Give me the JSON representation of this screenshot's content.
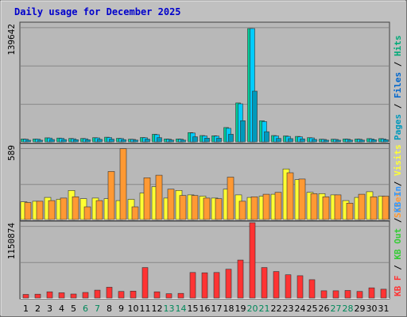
{
  "title": "Daily usage for December 2025",
  "colors": {
    "background": "#c0c0c0",
    "plot_bg": "#b8b8b8",
    "title": "#0000cc",
    "gridline": "#888888",
    "border_dark": "#404040",
    "border_light": "#f0f0f0",
    "hits": "#00cc99",
    "files": "#00ccff",
    "pages": "#0099bb",
    "visits": "#ffff33",
    "sites": "#ff9933",
    "kb_in": "#3399ff",
    "kb_out": "#33cc33",
    "kb_f": "#ff3333",
    "day_weekday": "#000000",
    "day_weekend": "#00885a"
  },
  "chart_data": [
    {
      "type": "bar",
      "panel": "hits-files-pages",
      "ytick_label": "139642",
      "ymax": 139642,
      "legend": [
        {
          "label": "Pages",
          "color": "#0099bb"
        },
        {
          "label": "Files",
          "color": "#0066cc"
        },
        {
          "label": "Hits",
          "color": "#00aa77"
        }
      ],
      "categories": [
        "1",
        "2",
        "3",
        "4",
        "5",
        "6",
        "7",
        "8",
        "9",
        "10",
        "11",
        "12",
        "13",
        "14",
        "15",
        "16",
        "17",
        "18",
        "19",
        "20",
        "21",
        "22",
        "23",
        "24",
        "25",
        "26",
        "27",
        "28",
        "29",
        "30",
        "31"
      ],
      "series": [
        {
          "name": "Hits",
          "values": [
            3500,
            3500,
            4800,
            4500,
            4000,
            4000,
            5000,
            5500,
            4200,
            3200,
            5200,
            9000,
            3500,
            3500,
            11000,
            7500,
            7200,
            17000,
            46000,
            134000,
            25000,
            7500,
            7000,
            6500,
            5000,
            3200,
            3200,
            3500,
            3400,
            3800,
            3800
          ]
        },
        {
          "name": "Files",
          "values": [
            3200,
            3300,
            4500,
            4200,
            3700,
            3700,
            4700,
            5200,
            3900,
            2900,
            4900,
            8500,
            3200,
            3200,
            10500,
            7000,
            6800,
            16000,
            45000,
            134000,
            24000,
            7000,
            6500,
            6000,
            4700,
            2900,
            2900,
            3200,
            3100,
            3500,
            3500
          ]
        },
        {
          "name": "Pages",
          "values": [
            2000,
            2000,
            2800,
            2700,
            2500,
            2400,
            3000,
            3200,
            2600,
            2100,
            3200,
            5000,
            2200,
            2100,
            6000,
            4400,
            4300,
            9000,
            25000,
            60000,
            12000,
            4000,
            3800,
            3600,
            2900,
            2000,
            2000,
            2200,
            2100,
            2400,
            2400
          ]
        }
      ]
    },
    {
      "type": "bar",
      "panel": "visits-sites",
      "ytick_label": "589",
      "ymax": 589,
      "legend": [
        {
          "label": "Sites",
          "color": "#ff9933"
        },
        {
          "label": "Visits",
          "color": "#ffff33"
        }
      ],
      "categories": [
        "1",
        "2",
        "3",
        "4",
        "5",
        "6",
        "7",
        "8",
        "9",
        "10",
        "11",
        "12",
        "13",
        "14",
        "15",
        "16",
        "17",
        "18",
        "19",
        "20",
        "21",
        "22",
        "23",
        "24",
        "25",
        "26",
        "27",
        "28",
        "29",
        "30",
        "31"
      ],
      "series": [
        {
          "name": "Visits",
          "values": [
            140,
            145,
            175,
            160,
            230,
            165,
            170,
            165,
            150,
            160,
            210,
            260,
            170,
            230,
            195,
            185,
            170,
            240,
            195,
            175,
            185,
            200,
            400,
            315,
            215,
            205,
            195,
            150,
            175,
            220,
            185
          ]
        },
        {
          "name": "Sites",
          "values": [
            135,
            145,
            150,
            170,
            180,
            100,
            150,
            380,
            560,
            100,
            330,
            350,
            240,
            190,
            190,
            170,
            165,
            335,
            145,
            180,
            200,
            215,
            370,
            320,
            205,
            180,
            195,
            130,
            200,
            180,
            185
          ]
        }
      ]
    },
    {
      "type": "bar",
      "panel": "kbytes",
      "ytick_label": "1150874",
      "ymax": 1150874,
      "legend": [
        {
          "label": "KB F",
          "color": "#ff3333"
        },
        {
          "label": "KB Out",
          "color": "#33cc33"
        },
        {
          "label": "KB In",
          "color": "#3399ff"
        }
      ],
      "categories": [
        "1",
        "2",
        "3",
        "4",
        "5",
        "6",
        "7",
        "8",
        "9",
        "10",
        "11",
        "12",
        "13",
        "14",
        "15",
        "16",
        "17",
        "18",
        "19",
        "20",
        "21",
        "22",
        "23",
        "24",
        "25",
        "26",
        "27",
        "28",
        "29",
        "30",
        "31"
      ],
      "series": [
        {
          "name": "KB F",
          "values": [
            55000,
            58000,
            95000,
            80000,
            60000,
            85000,
            120000,
            165000,
            100000,
            105000,
            465000,
            95000,
            65000,
            70000,
            390000,
            385000,
            390000,
            440000,
            580000,
            1150874,
            465000,
            405000,
            355000,
            340000,
            280000,
            110000,
            110000,
            115000,
            100000,
            155000,
            135000
          ]
        }
      ]
    }
  ],
  "x_labels": [
    {
      "label": "1",
      "weekend": false
    },
    {
      "label": "2",
      "weekend": false
    },
    {
      "label": "3",
      "weekend": false
    },
    {
      "label": "4",
      "weekend": false
    },
    {
      "label": "5",
      "weekend": false
    },
    {
      "label": "6",
      "weekend": true
    },
    {
      "label": "7",
      "weekend": true
    },
    {
      "label": "8",
      "weekend": false
    },
    {
      "label": "9",
      "weekend": false
    },
    {
      "label": "10",
      "weekend": false
    },
    {
      "label": "11",
      "weekend": false
    },
    {
      "label": "12",
      "weekend": false
    },
    {
      "label": "13",
      "weekend": true
    },
    {
      "label": "14",
      "weekend": true
    },
    {
      "label": "15",
      "weekend": false
    },
    {
      "label": "16",
      "weekend": false
    },
    {
      "label": "17",
      "weekend": false
    },
    {
      "label": "18",
      "weekend": false
    },
    {
      "label": "19",
      "weekend": false
    },
    {
      "label": "20",
      "weekend": true
    },
    {
      "label": "21",
      "weekend": true
    },
    {
      "label": "22",
      "weekend": false
    },
    {
      "label": "23",
      "weekend": false
    },
    {
      "label": "24",
      "weekend": false
    },
    {
      "label": "25",
      "weekend": false
    },
    {
      "label": "26",
      "weekend": false
    },
    {
      "label": "27",
      "weekend": true
    },
    {
      "label": "28",
      "weekend": true
    },
    {
      "label": "29",
      "weekend": false
    },
    {
      "label": "30",
      "weekend": false
    },
    {
      "label": "31",
      "weekend": false
    }
  ]
}
